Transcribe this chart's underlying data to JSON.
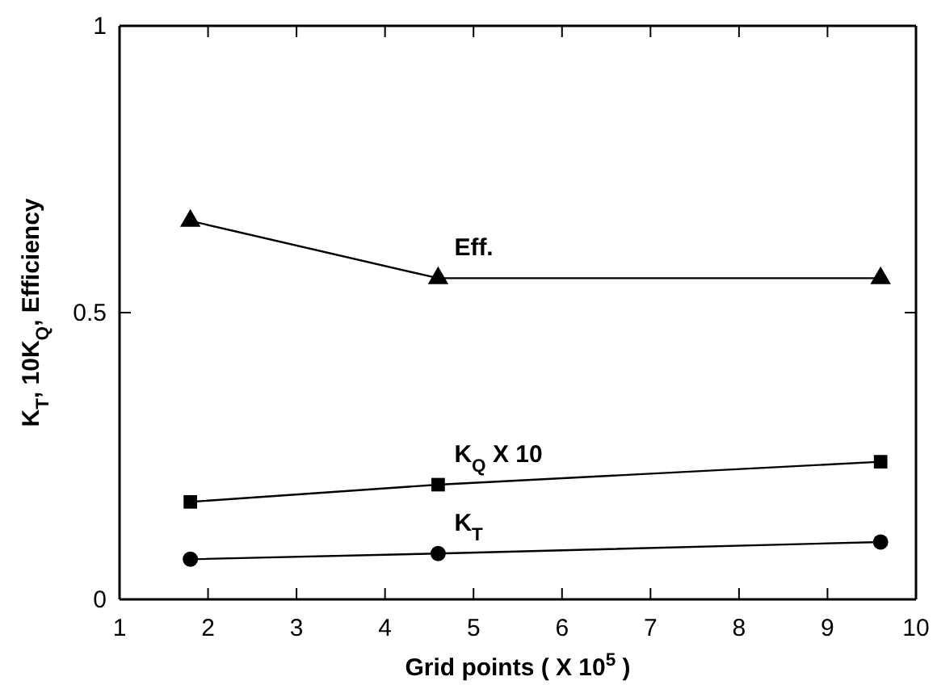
{
  "chart_data": {
    "type": "line",
    "xlabel": "Grid points ( X 10$^{5}$ )",
    "ylabel": "K$_{T}$, 10K$_{Q}$, Efficiency",
    "xlim": [
      1,
      10
    ],
    "xticks": [
      1,
      2,
      3,
      4,
      5,
      6,
      7,
      8,
      9,
      10
    ],
    "ylim": [
      0,
      1
    ],
    "yticks": [
      0,
      0.5,
      1
    ],
    "grid": false,
    "legend": false,
    "line_style": "solid",
    "series": [
      {
        "name": "Eff.",
        "color": "#000000",
        "marker": "triangle",
        "x": [
          1.8,
          4.6,
          9.6
        ],
        "values": [
          0.66,
          0.56,
          0.56
        ]
      },
      {
        "name": "K$_{Q}$  X 10",
        "color": "#000000",
        "marker": "square",
        "x": [
          1.8,
          4.6,
          9.6
        ],
        "values": [
          0.17,
          0.2,
          0.24
        ]
      },
      {
        "name": "K$_{T}$",
        "color": "#000000",
        "marker": "circle",
        "x": [
          1.8,
          4.6,
          9.6
        ],
        "values": [
          0.07,
          0.08,
          0.1
        ]
      }
    ]
  }
}
